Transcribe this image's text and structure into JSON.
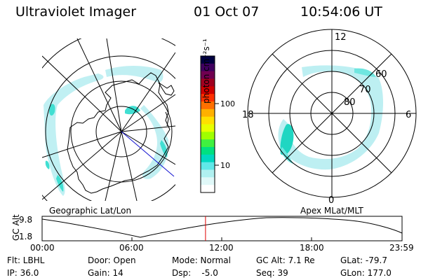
{
  "header": {
    "title": "Ultraviolet Imager",
    "date": "01 Oct 07",
    "time": "10:54:06 UT"
  },
  "colorbar": {
    "unit_label": "photon cm⁻²s⁻¹",
    "ticks": [
      "100",
      "10"
    ],
    "colors": [
      "#000040",
      "#400060",
      "#700050",
      "#a00020",
      "#d00000",
      "#ff3000",
      "#ff7000",
      "#ffb000",
      "#ffe000",
      "#e8ff00",
      "#a0ff00",
      "#40f040",
      "#00e080",
      "#00d8c0",
      "#60e8e8",
      "#b0f0f0",
      "#e0f8f8",
      "#ffffff"
    ]
  },
  "geographic_map": {
    "label": "Geographic Lat/Lon"
  },
  "polar_map": {
    "label": "Apex MLat/MLT",
    "mlt_labels": [
      "12",
      "18",
      "6",
      "0"
    ],
    "lat_labels": [
      "60",
      "70",
      "80"
    ]
  },
  "altitude_plot": {
    "ylabel": "GC Alt",
    "y_ticks": [
      "9.8",
      "1.8"
    ],
    "x_ticks": [
      "00:00",
      "06:00",
      "12:00",
      "18:00",
      "23:59"
    ],
    "marker_color": "#e00000",
    "marker_time_fraction": 0.454
  },
  "status": {
    "row1": {
      "filter": "Flt: LBHL",
      "door": "Door: Open",
      "mode": "Mode: Normal",
      "gc_alt": "GC Alt: 7.1 Re",
      "glat": "GLat: -79.7"
    },
    "row2": {
      "ip": "IP: 36.0",
      "gain": "Gain: 14",
      "dsp": "Dsp:    -5.0",
      "seq": "Seq: 39",
      "glon": "GLon: 177.0"
    }
  }
}
